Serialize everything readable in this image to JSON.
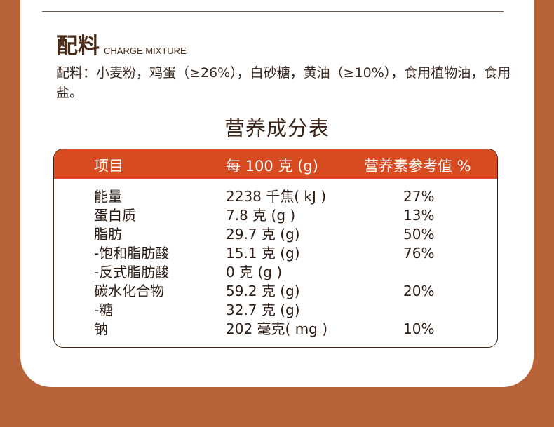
{
  "ingredients": {
    "title": "配料",
    "subtitle": "CHARGE MIXTURE",
    "text": "配料：小麦粉，鸡蛋（≥26%），白砂糖，黄油（≥10%），食用植物油，食用盐。"
  },
  "nutrition": {
    "title": "营养成分表",
    "headers": [
      "项目",
      "每 100 克 (g)",
      "营养素参考值 %"
    ],
    "rows": [
      {
        "name": "能量",
        "value": "2238 千焦( kJ )",
        "nrv": "27%"
      },
      {
        "name": "蛋白质",
        "value": "7.8 克 (g )",
        "nrv": "13%"
      },
      {
        "name": "脂肪",
        "value": "29.7 克 (g)",
        "nrv": "50%"
      },
      {
        "name": "-饱和脂肪酸",
        "value": "15.1 克 (g)",
        "nrv": "76%"
      },
      {
        "name": "-反式脂肪酸",
        "value": "0 克 (g )",
        "nrv": ""
      },
      {
        "name": "碳水化合物",
        "value": "59.2 克 (g)",
        "nrv": "20%"
      },
      {
        "name": "-糖",
        "value": "32.7 克 (g)",
        "nrv": ""
      },
      {
        "name": "钠",
        "value": "202 毫克( mg )",
        "nrv": "10%"
      }
    ]
  }
}
